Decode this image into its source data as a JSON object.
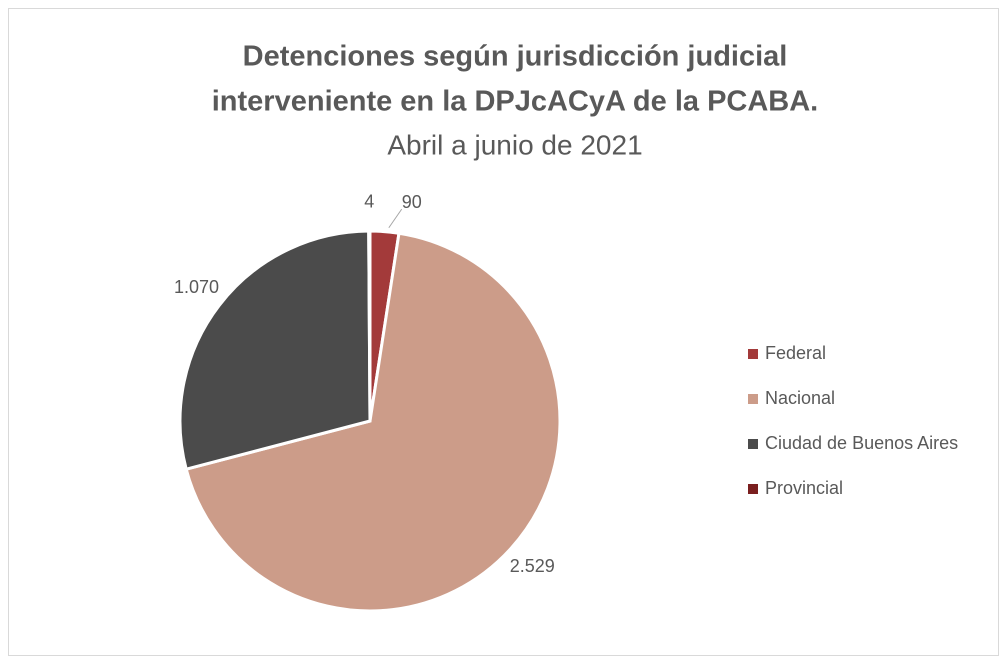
{
  "chart_data": {
    "type": "pie",
    "title": [
      "Detenciones según jurisdicción judicial",
      "interveniente en la DPJcACyA de la PCABA."
    ],
    "subtitle": "Abril a junio de 2021",
    "categories": [
      "Federal",
      "Nacional",
      "Ciudad de Buenos Aires",
      "Provincial"
    ],
    "values": [
      90,
      2529,
      1070,
      4
    ],
    "value_labels": [
      "90",
      "2.529",
      "1.070",
      "4"
    ],
    "colors": [
      "#a33a3a",
      "#cc9c89",
      "#4b4b4b",
      "#7a1f1f"
    ],
    "legend": "right"
  }
}
